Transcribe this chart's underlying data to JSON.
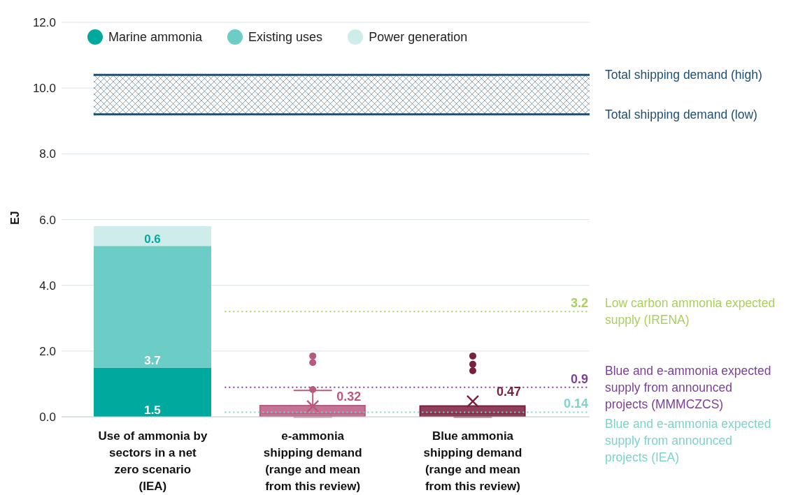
{
  "chart_data": {
    "type": "bar",
    "ylabel": "EJ",
    "categories": [
      "Use of ammonia by sectors in a net zero scenario (IEA)",
      "e-ammonia shipping demand (range and mean from this review)",
      "Blue ammonia shipping demand (range and mean from this review)"
    ],
    "stacked": true,
    "ylim": [
      0,
      12
    ],
    "yticks": [
      {
        "value": 0,
        "label": "0.0"
      },
      {
        "value": 2,
        "label": "2.0"
      },
      {
        "value": 4,
        "label": "4.0"
      },
      {
        "value": 6,
        "label": "6.0"
      },
      {
        "value": 8,
        "label": "8.0"
      },
      {
        "value": 10,
        "label": "10.0"
      },
      {
        "value": 12,
        "label": "12.0"
      }
    ],
    "grid": "y",
    "legend": "top left",
    "data_labels": true,
    "series": [
      {
        "name": "Marine ammonia",
        "color": "#00a99d",
        "values": [
          1.5,
          null,
          null
        ]
      },
      {
        "name": "Existing uses",
        "color": "#6bcdc5",
        "values": [
          3.7,
          null,
          null
        ]
      },
      {
        "name": "Power generation",
        "color": "#cdecea",
        "values": [
          0.6,
          null,
          null
        ]
      },
      {
        "type": "box",
        "colors": [
          null,
          "#b85a80",
          "#7a1f3d"
        ],
        "boxes": [
          null,
          {
            "low": 0,
            "q1": 0,
            "median": 0.1,
            "q3": 0.34,
            "high": 0.8,
            "mean": 0.32,
            "outliers": [
              0.83,
              1.65,
              1.85
            ]
          },
          {
            "low": 0,
            "q1": 0,
            "median": 0.1,
            "q3": 0.33,
            "high": 0.33,
            "mean": 0.47,
            "outliers": [
              1.4,
              1.6,
              1.85
            ]
          }
        ]
      }
    ],
    "bands": [
      {
        "axis": "y",
        "from": 9.2,
        "to": 10.4,
        "color": "#1f4e6e"
      }
    ],
    "ref_lines": [
      {
        "axis": "y",
        "value": 10.4,
        "label": "Total shipping demand (high)",
        "color": "#1f4e6e",
        "line_style": "solid"
      },
      {
        "axis": "y",
        "value": 9.2,
        "label": "Total shipping demand (low)",
        "color": "#1f4e6e",
        "line_style": "solid"
      },
      {
        "axis": "y",
        "value": 3.2,
        "label": "Low carbon ammonia expected supply (IRENA)",
        "color": "#a8d05a",
        "line_style": "dotted"
      },
      {
        "axis": "y",
        "value": 0.9,
        "label": "Blue and e-ammonia expected supply from announced projects (MMMCZCS)",
        "color": "#7b3f98",
        "line_style": "dotted"
      },
      {
        "axis": "y",
        "value": 0.14,
        "label": "Blue and e-ammonia expected supply from announced projects (IEA)",
        "color": "#7dd3cc",
        "line_style": "dotted"
      }
    ],
    "annotations": [
      "0.32",
      "0.47",
      {
        "text": "3.2",
        "y": 3.2
      },
      {
        "text": "0.9",
        "y": 0.9
      },
      {
        "text": "0.14",
        "y": 0.14
      }
    ]
  }
}
